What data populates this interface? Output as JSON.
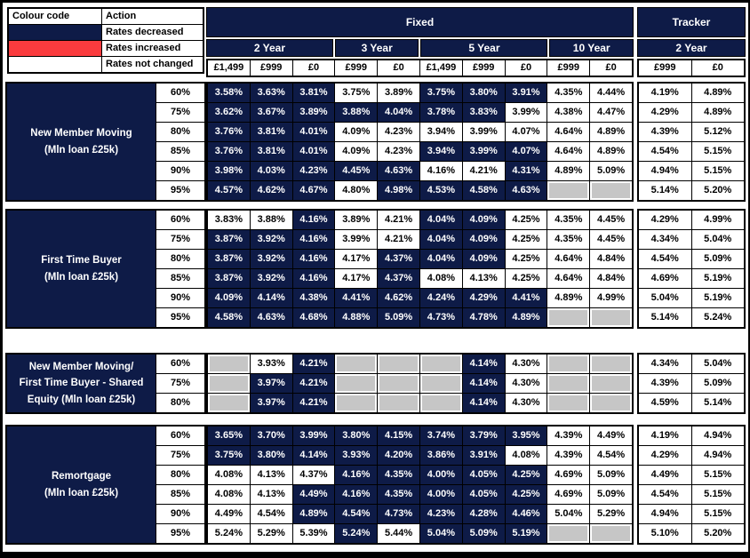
{
  "colors": {
    "navy": "#0E1B47",
    "red": "#FA3B3E",
    "gray": "#C6C6C6"
  },
  "legend": {
    "header": {
      "colour_code": "Colour code",
      "action": "Action"
    },
    "rows": [
      {
        "status": "d",
        "label": "Rates decreased"
      },
      {
        "status": "u",
        "label": "Rates increased"
      },
      {
        "status": "n",
        "label": "Rates not changed"
      }
    ]
  },
  "cell_format": "value|status  (d=rates decreased/navy, u=rates increased/red, n=not changed/white, x=not available/grey)",
  "header": {
    "fixed_label": "Fixed",
    "tracker_label": "Tracker",
    "fixed_terms": [
      {
        "label": "2 Year",
        "span": 3
      },
      {
        "label": "3 Year",
        "span": 2
      },
      {
        "label": "5 Year",
        "span": 3
      },
      {
        "label": "10 Year",
        "span": 2
      }
    ],
    "fixed_fees": [
      "£1,499",
      "£999",
      "£0",
      "£999",
      "£0",
      "£1,499",
      "£999",
      "£0",
      "£999",
      "£0"
    ],
    "tracker_term": "2 Year",
    "tracker_fees": [
      "£999",
      "£0"
    ]
  },
  "groups": [
    {
      "label_lines": [
        "New Member Moving",
        "(Mln loan £25k)"
      ],
      "rows": [
        {
          "ltv": "60%",
          "cells": [
            "3.58%|d",
            "3.63%|d",
            "3.81%|d",
            "3.75%|n",
            "3.89%|n",
            "3.75%|d",
            "3.80%|d",
            "3.91%|d",
            "4.35%|n",
            "4.44%|n",
            "4.19%|n",
            "4.89%|n"
          ]
        },
        {
          "ltv": "75%",
          "cells": [
            "3.62%|d",
            "3.67%|d",
            "3.89%|d",
            "3.88%|d",
            "4.04%|d",
            "3.78%|d",
            "3.83%|d",
            "3.99%|n",
            "4.38%|n",
            "4.47%|n",
            "4.29%|n",
            "4.89%|n"
          ]
        },
        {
          "ltv": "80%",
          "cells": [
            "3.76%|d",
            "3.81%|d",
            "4.01%|d",
            "4.09%|n",
            "4.23%|n",
            "3.94%|n",
            "3.99%|n",
            "4.07%|n",
            "4.64%|n",
            "4.89%|n",
            "4.39%|n",
            "5.12%|n"
          ]
        },
        {
          "ltv": "85%",
          "cells": [
            "3.76%|d",
            "3.81%|d",
            "4.01%|d",
            "4.09%|n",
            "4.23%|n",
            "3.94%|d",
            "3.99%|d",
            "4.07%|d",
            "4.64%|n",
            "4.89%|n",
            "4.54%|n",
            "5.15%|n"
          ]
        },
        {
          "ltv": "90%",
          "cells": [
            "3.98%|d",
            "4.03%|d",
            "4.23%|d",
            "4.45%|d",
            "4.63%|d",
            "4.16%|n",
            "4.21%|n",
            "4.31%|d",
            "4.89%|n",
            "5.09%|n",
            "4.94%|n",
            "5.15%|n"
          ]
        },
        {
          "ltv": "95%",
          "cells": [
            "4.57%|d",
            "4.62%|d",
            "4.67%|d",
            "4.80%|n",
            "4.98%|d",
            "4.53%|d",
            "4.58%|d",
            "4.63%|d",
            "|x",
            "|x",
            "5.14%|n",
            "5.20%|n"
          ]
        }
      ]
    },
    {
      "label_lines": [
        "First Time Buyer",
        "(Mln loan £25k)"
      ],
      "rows": [
        {
          "ltv": "60%",
          "cells": [
            "3.83%|n",
            "3.88%|n",
            "4.16%|d",
            "3.89%|n",
            "4.21%|n",
            "4.04%|d",
            "4.09%|d",
            "4.25%|n",
            "4.35%|n",
            "4.45%|n",
            "4.29%|n",
            "4.99%|n"
          ]
        },
        {
          "ltv": "75%",
          "cells": [
            "3.87%|d",
            "3.92%|d",
            "4.16%|d",
            "3.99%|n",
            "4.21%|n",
            "4.04%|d",
            "4.09%|d",
            "4.25%|n",
            "4.35%|n",
            "4.45%|n",
            "4.34%|n",
            "5.04%|n"
          ]
        },
        {
          "ltv": "80%",
          "cells": [
            "3.87%|d",
            "3.92%|d",
            "4.16%|d",
            "4.17%|n",
            "4.37%|d",
            "4.04%|d",
            "4.09%|d",
            "4.25%|n",
            "4.64%|n",
            "4.84%|n",
            "4.54%|n",
            "5.09%|n"
          ]
        },
        {
          "ltv": "85%",
          "cells": [
            "3.87%|d",
            "3.92%|d",
            "4.16%|d",
            "4.17%|n",
            "4.37%|d",
            "4.08%|n",
            "4.13%|n",
            "4.25%|n",
            "4.64%|n",
            "4.84%|n",
            "4.69%|n",
            "5.19%|n"
          ]
        },
        {
          "ltv": "90%",
          "cells": [
            "4.09%|d",
            "4.14%|d",
            "4.38%|d",
            "4.41%|d",
            "4.62%|d",
            "4.24%|d",
            "4.29%|d",
            "4.41%|d",
            "4.89%|n",
            "4.99%|n",
            "5.04%|n",
            "5.19%|n"
          ]
        },
        {
          "ltv": "95%",
          "cells": [
            "4.58%|d",
            "4.63%|d",
            "4.68%|d",
            "4.88%|d",
            "5.09%|d",
            "4.73%|d",
            "4.78%|d",
            "4.89%|d",
            "|x",
            "|x",
            "5.14%|n",
            "5.24%|n"
          ]
        }
      ]
    },
    {
      "label_lines": [
        "New Member Moving/",
        "First Time Buyer - Shared",
        "Equity (Mln loan £25k)"
      ],
      "rows": [
        {
          "ltv": "60%",
          "cells": [
            "|x",
            "3.93%|n",
            "4.21%|d",
            "|x",
            "|x",
            "|x",
            "4.14%|d",
            "4.30%|n",
            "|x",
            "|x",
            "4.34%|n",
            "5.04%|n"
          ]
        },
        {
          "ltv": "75%",
          "cells": [
            "|x",
            "3.97%|d",
            "4.21%|d",
            "|x",
            "|x",
            "|x",
            "4.14%|d",
            "4.30%|n",
            "|x",
            "|x",
            "4.39%|n",
            "5.09%|n"
          ]
        },
        {
          "ltv": "80%",
          "cells": [
            "|x",
            "3.97%|d",
            "4.21%|d",
            "|x",
            "|x",
            "|x",
            "4.14%|d",
            "4.30%|n",
            "|x",
            "|x",
            "4.59%|n",
            "5.14%|n"
          ]
        }
      ]
    },
    {
      "label_lines": [
        "Remortgage",
        "(Mln loan £25k)"
      ],
      "rows": [
        {
          "ltv": "60%",
          "cells": [
            "3.65%|d",
            "3.70%|d",
            "3.99%|d",
            "3.80%|d",
            "4.15%|d",
            "3.74%|d",
            "3.79%|d",
            "3.95%|d",
            "4.39%|n",
            "4.49%|n",
            "4.19%|n",
            "4.94%|n"
          ]
        },
        {
          "ltv": "75%",
          "cells": [
            "3.75%|d",
            "3.80%|d",
            "4.14%|d",
            "3.93%|d",
            "4.20%|d",
            "3.86%|d",
            "3.91%|d",
            "4.08%|n",
            "4.39%|n",
            "4.54%|n",
            "4.29%|n",
            "4.94%|n"
          ]
        },
        {
          "ltv": "80%",
          "cells": [
            "4.08%|n",
            "4.13%|n",
            "4.37%|n",
            "4.16%|d",
            "4.35%|d",
            "4.00%|d",
            "4.05%|d",
            "4.25%|d",
            "4.69%|n",
            "5.09%|n",
            "4.49%|n",
            "5.15%|n"
          ]
        },
        {
          "ltv": "85%",
          "cells": [
            "4.08%|n",
            "4.13%|n",
            "4.49%|d",
            "4.16%|d",
            "4.35%|d",
            "4.00%|d",
            "4.05%|d",
            "4.25%|d",
            "4.69%|n",
            "5.09%|n",
            "4.54%|n",
            "5.15%|n"
          ]
        },
        {
          "ltv": "90%",
          "cells": [
            "4.49%|n",
            "4.54%|n",
            "4.89%|d",
            "4.54%|d",
            "4.73%|d",
            "4.23%|d",
            "4.28%|d",
            "4.46%|d",
            "5.04%|n",
            "5.29%|n",
            "4.94%|n",
            "5.15%|n"
          ]
        },
        {
          "ltv": "95%",
          "cells": [
            "5.24%|n",
            "5.29%|n",
            "5.39%|n",
            "5.24%|d",
            "5.44%|n",
            "5.04%|d",
            "5.09%|d",
            "5.19%|d",
            "|x",
            "|x",
            "5.10%|n",
            "5.20%|n"
          ]
        }
      ]
    }
  ]
}
